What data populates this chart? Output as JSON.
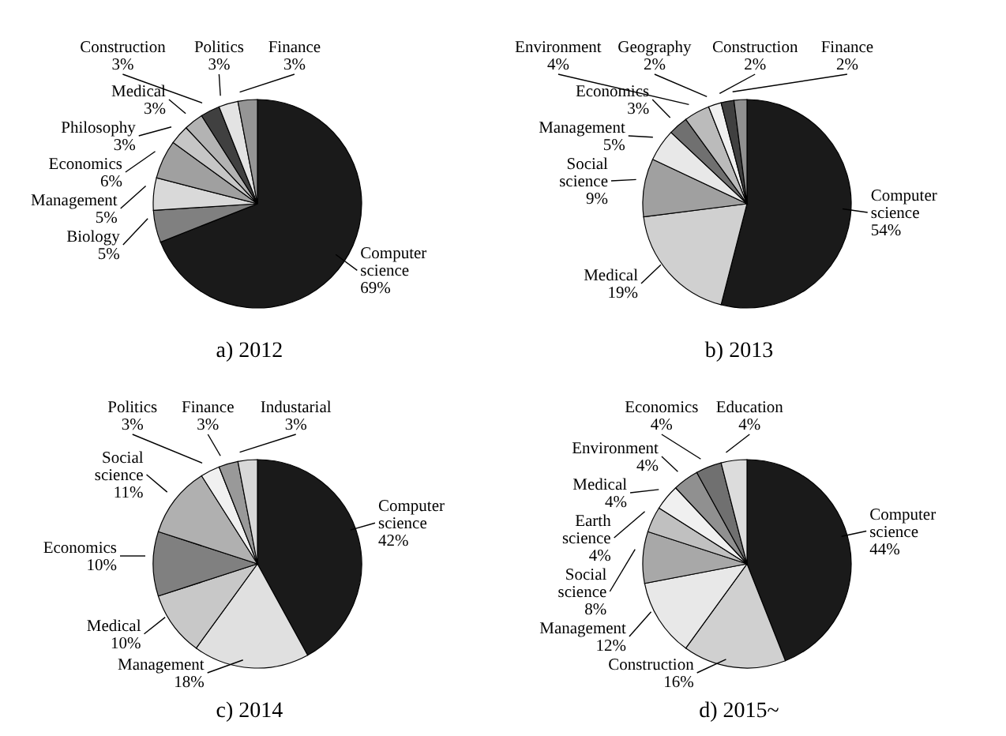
{
  "chart_data": [
    {
      "type": "pie",
      "title": "a) 2012",
      "categories": [
        "Computer science",
        "Biology",
        "Management",
        "Economics",
        "Philosophy",
        "Medical",
        "Construction",
        "Politics",
        "Finance"
      ],
      "values": [
        69,
        5,
        5,
        6,
        3,
        3,
        3,
        3,
        3
      ],
      "value_labels": [
        "69%",
        "5%",
        "5%",
        "6%",
        "3%",
        "3%",
        "3%",
        "3%",
        "3%"
      ],
      "colors": [
        "#1a1a1a",
        "#808080",
        "#d9d9d9",
        "#a0a0a0",
        "#c6c6c6",
        "#b3b3b3",
        "#404040",
        "#e3e3e3",
        "#959595"
      ]
    },
    {
      "type": "pie",
      "title": "b) 2013",
      "categories": [
        "Computer science",
        "Medical",
        "Social science",
        "Management",
        "Economics",
        "Environment",
        "Geography",
        "Construction",
        "Finance"
      ],
      "values": [
        54,
        19,
        9,
        5,
        3,
        4,
        2,
        2,
        2
      ],
      "value_labels": [
        "54%",
        "19%",
        "9%",
        "5%",
        "3%",
        "4%",
        "2%",
        "2%",
        "2%"
      ],
      "colors": [
        "#1a1a1a",
        "#d0d0d0",
        "#a0a0a0",
        "#e8e8e8",
        "#707070",
        "#bbbbbb",
        "#f0f0f0",
        "#404040",
        "#909090"
      ]
    },
    {
      "type": "pie",
      "title": "c) 2014",
      "categories": [
        "Computer science",
        "Management",
        "Medical",
        "Economics",
        "Social science",
        "Politics",
        "Finance",
        "Industarial"
      ],
      "values": [
        42,
        18,
        10,
        10,
        11,
        3,
        3,
        3
      ],
      "value_labels": [
        "42%",
        "18%",
        "10%",
        "10%",
        "11%",
        "3%",
        "3%",
        "3%"
      ],
      "colors": [
        "#1a1a1a",
        "#e0e0e0",
        "#c8c8c8",
        "#808080",
        "#b0b0b0",
        "#f0f0f0",
        "#999999",
        "#d8d8d8"
      ]
    },
    {
      "type": "pie",
      "title": "d) 2015~",
      "categories": [
        "Computer science",
        "Construction",
        "Management",
        "Social science",
        "Earth science",
        "Medical",
        "Environment",
        "Economics",
        "Education"
      ],
      "values": [
        44,
        16,
        12,
        8,
        4,
        4,
        4,
        4,
        4
      ],
      "value_labels": [
        "44%",
        "16%",
        "12%",
        "8%",
        "4%",
        "4%",
        "4%",
        "4%",
        "4%"
      ],
      "colors": [
        "#1a1a1a",
        "#d0d0d0",
        "#e8e8e8",
        "#a8a8a8",
        "#c0c0c0",
        "#f0f0f0",
        "#909090",
        "#707070",
        "#dcdcdc"
      ]
    }
  ]
}
